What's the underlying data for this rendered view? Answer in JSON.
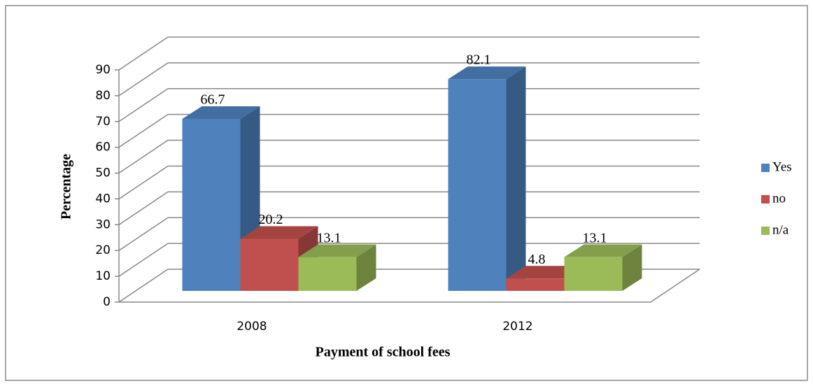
{
  "chart_data": {
    "type": "bar3d",
    "x_label": "Payment of school fees",
    "y_label": "Percentage",
    "categories": [
      "2008",
      "2012"
    ],
    "series": [
      {
        "name": "Yes",
        "color": "#4f81bd",
        "values": [
          66.7,
          82.1
        ]
      },
      {
        "name": "no",
        "color": "#c0504d",
        "values": [
          20.2,
          4.8
        ]
      },
      {
        "name": "n/a",
        "color": "#9bbb59",
        "values": [
          13.1,
          13.1
        ]
      }
    ],
    "ylim": [
      0,
      90
    ],
    "yticks": [
      0,
      10,
      20,
      30,
      40,
      50,
      60,
      70,
      80,
      90
    ],
    "grid": true,
    "legend": "right"
  }
}
